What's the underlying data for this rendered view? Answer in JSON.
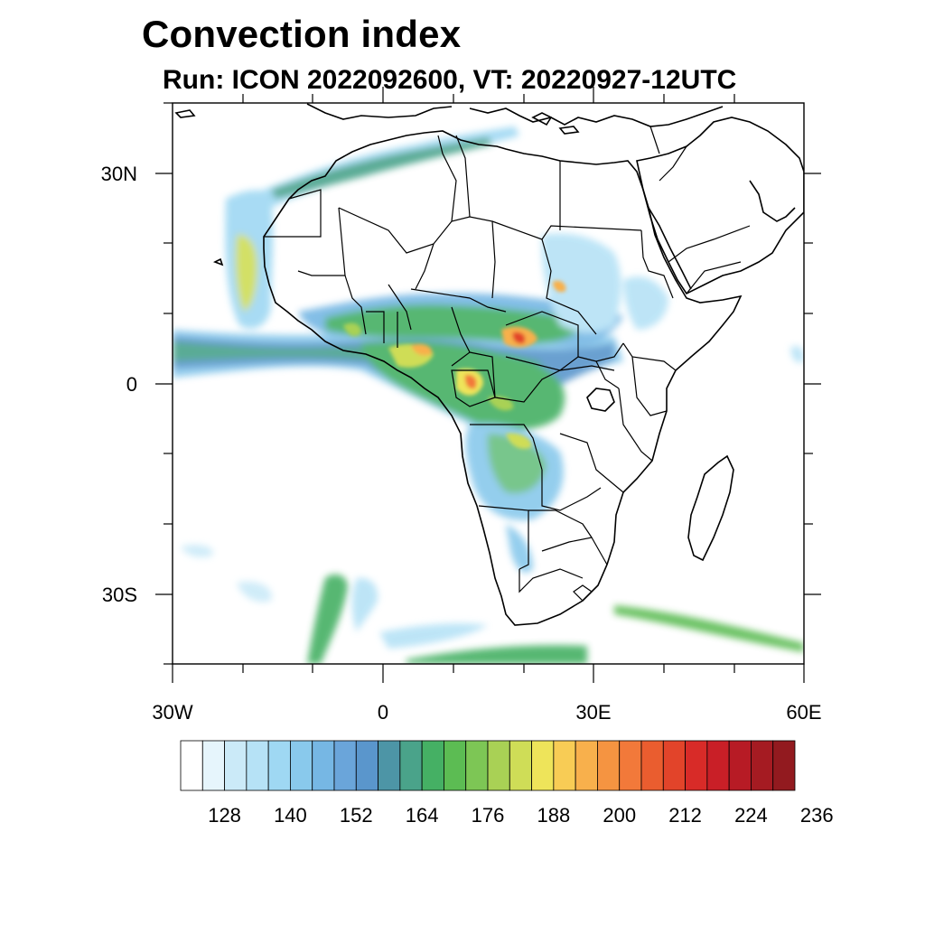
{
  "title": "Convection index",
  "subtitle": "Run: ICON 2022092600,  VT: 20220927-12UTC",
  "axes": {
    "lon_labels": [
      "30W",
      "0",
      "30E",
      "60E"
    ],
    "lat_labels": [
      "30N",
      "0",
      "30S"
    ],
    "lon_range": [
      -30,
      60
    ],
    "lat_range": [
      -40,
      40
    ]
  },
  "colorbar": {
    "labels": [
      "128",
      "140",
      "152",
      "164",
      "176",
      "188",
      "200",
      "212",
      "224",
      "236"
    ],
    "colors": [
      "#ffffff",
      "#e6f5fc",
      "#cbeaf8",
      "#b6e2f6",
      "#9fd8f3",
      "#89c9ec",
      "#76b7e4",
      "#6aa5da",
      "#5a96cc",
      "#4d95a6",
      "#4aa38a",
      "#45b064",
      "#5cbc53",
      "#7dc655",
      "#a9d155",
      "#cfdd57",
      "#eee45a",
      "#f8cc55",
      "#f8b04c",
      "#f59441",
      "#f2793a",
      "#ea5d2f",
      "#e2442a",
      "#d82b28",
      "#c91f27",
      "#b71b25",
      "#a51b22",
      "#921a1f"
    ]
  },
  "legend_icons": [
    "map-land-outline",
    "convection-field"
  ]
}
